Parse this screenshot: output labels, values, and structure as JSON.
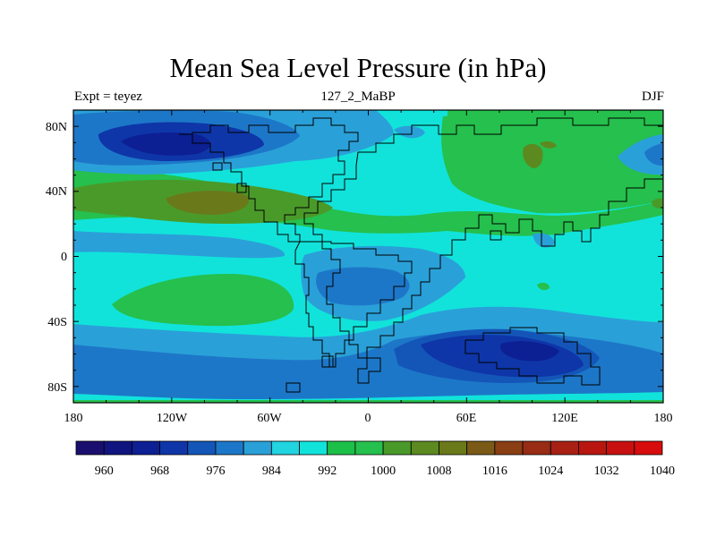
{
  "title": "Mean Sea Level Pressure (in hPa)",
  "subtitle_left": "Expt = teyez",
  "subtitle_center": "127_2_MaBP",
  "subtitle_right": "DJF",
  "map": {
    "lon_range": [
      -180,
      180
    ],
    "lat_range": [
      -90,
      90
    ],
    "x_ticks": [
      "180",
      "120W",
      "60W",
      "0",
      "60E",
      "120E",
      "180"
    ],
    "y_ticks": [
      "80N",
      "40N",
      "0",
      "40S",
      "80S"
    ]
  },
  "legend": {
    "labels": [
      "960",
      "968",
      "976",
      "984",
      "992",
      "1000",
      "1008",
      "1016",
      "1024",
      "1032",
      "1040"
    ],
    "colors": [
      "#1a0f6e",
      "#10147e",
      "#0c1f93",
      "#0e36a8",
      "#1456b8",
      "#1d77c8",
      "#2aa0d8",
      "#22d3e0",
      "#11e3db",
      "#1cc049",
      "#25c04d",
      "#4a9a2a",
      "#5c8a20",
      "#6a7a1a",
      "#7a5a16",
      "#8a3e14",
      "#982c14",
      "#a82014",
      "#b8160f",
      "#c81010",
      "#d80c0c"
    ]
  },
  "palette": {
    "deep_low": "#1a0f6e",
    "low": "#1456b8",
    "mid_low": "#2aa0d8",
    "mid": "#11e3db",
    "high": "#25c04d",
    "higher": "#4a9a2a",
    "peak": "#6a7a1a"
  }
}
